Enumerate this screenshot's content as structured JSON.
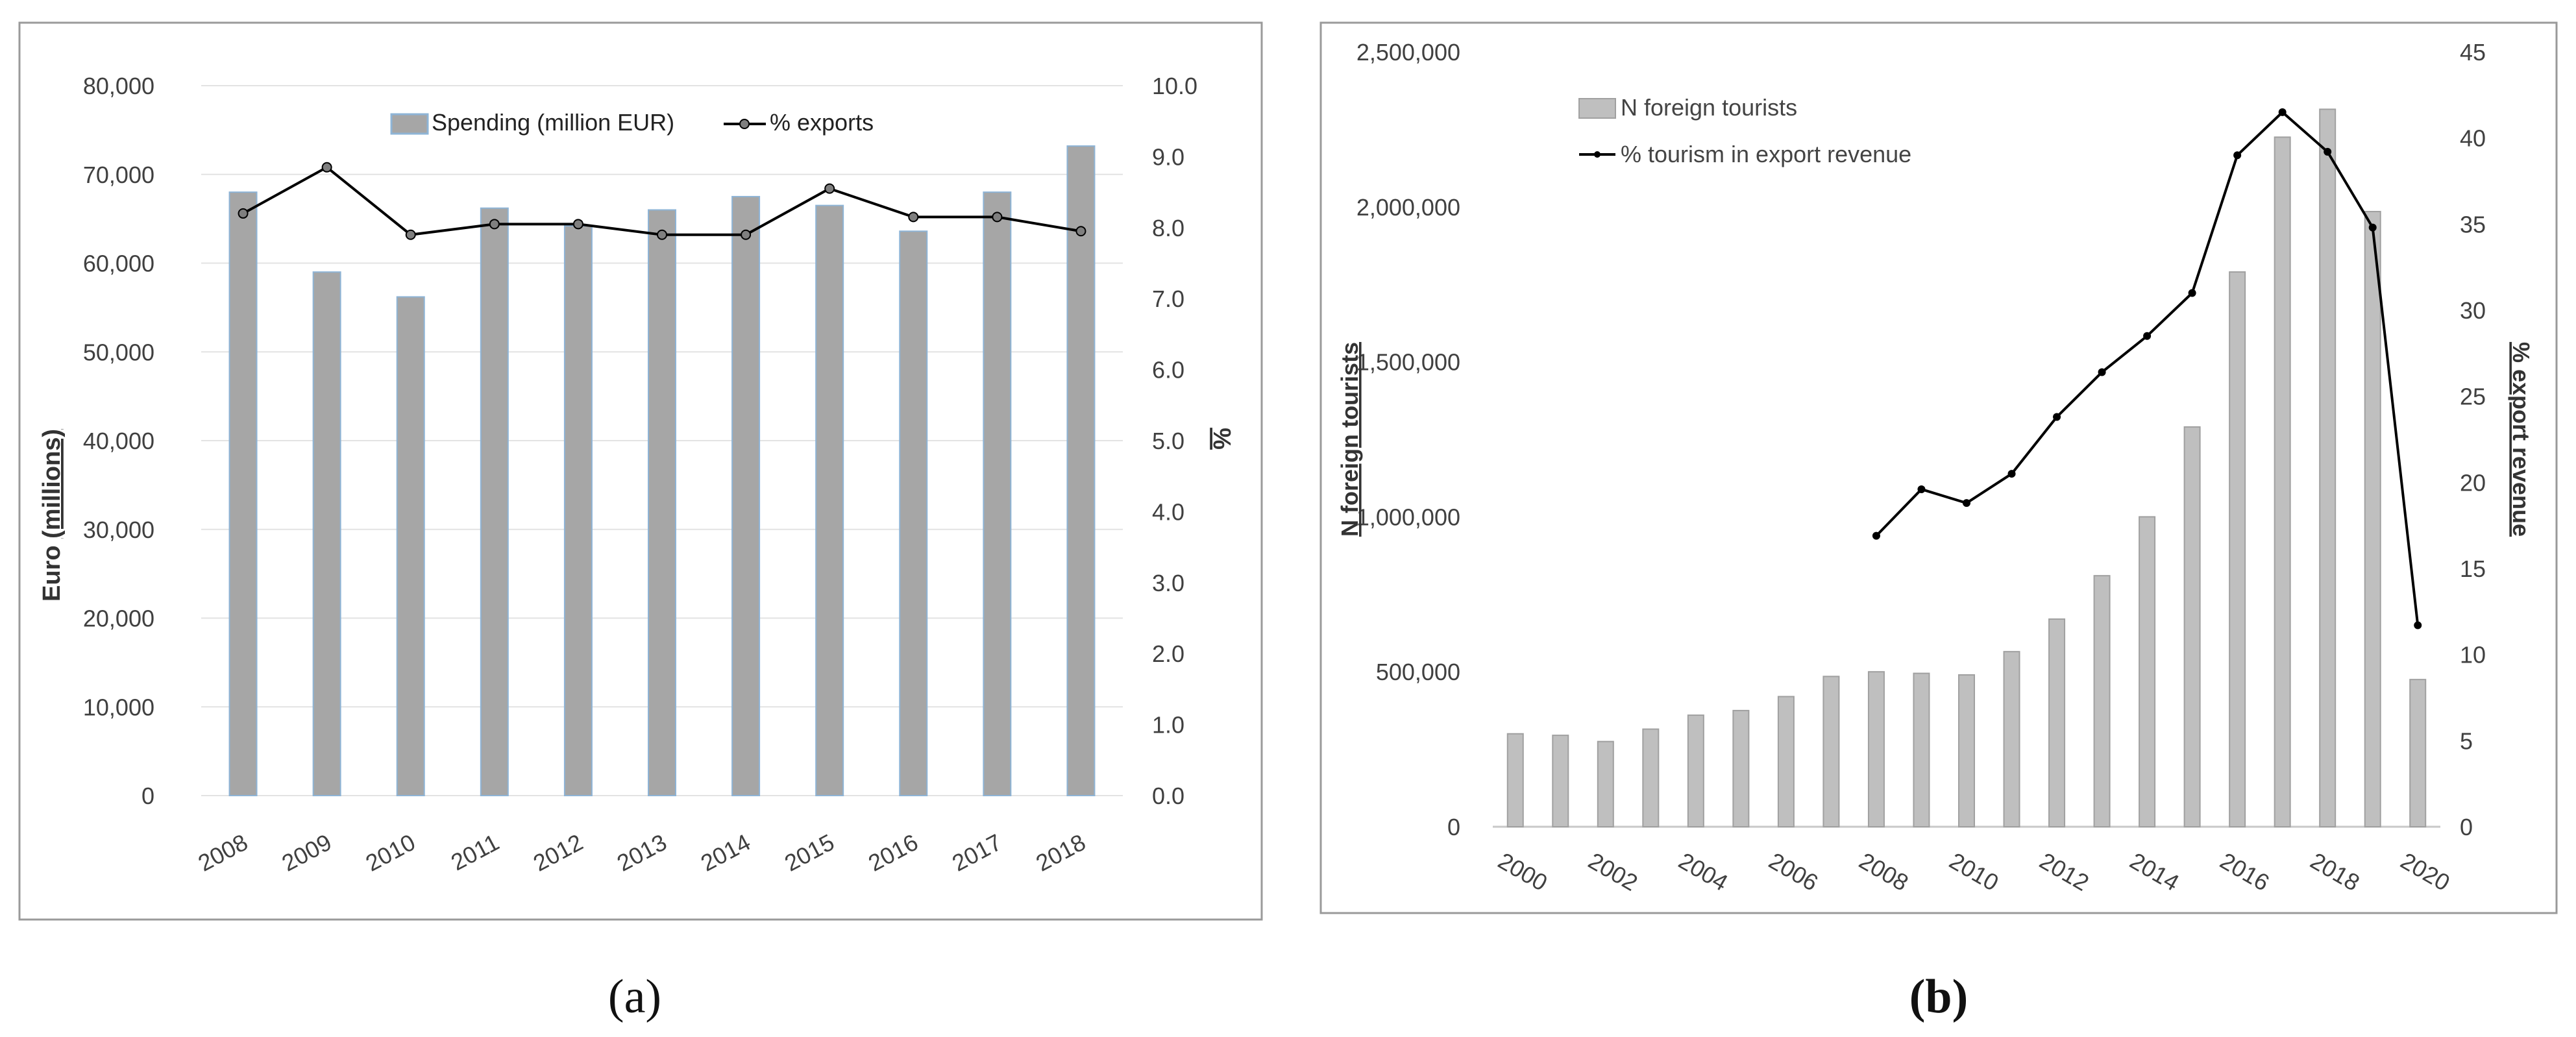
{
  "panels": [
    {
      "caption": "(a)",
      "chart_data": {
        "type": "bar",
        "categories": [
          "2008",
          "2009",
          "2010",
          "2011",
          "2012",
          "2013",
          "2014",
          "2015",
          "2016",
          "2017",
          "2018"
        ],
        "series": [
          {
            "name": "Spending (million EUR)",
            "type": "bar",
            "axis": "left",
            "color": "#a6a6a6",
            "edge": "#8eb4d6",
            "values": [
              68000,
              59000,
              56200,
              66200,
              64200,
              66000,
              67500,
              66500,
              63600,
              68000,
              73200
            ]
          },
          {
            "name": "% exports",
            "type": "line",
            "axis": "right",
            "color": "#000000",
            "values": [
              8.2,
              8.85,
              7.9,
              8.05,
              8.05,
              7.9,
              7.9,
              8.55,
              8.15,
              8.15,
              7.95
            ]
          }
        ],
        "yleft": {
          "label_parts": [
            "Euro ",
            "(millions)"
          ],
          "min": 0,
          "max": 80000,
          "step": 10000,
          "ticks": [
            "0",
            "10,000",
            "20,000",
            "30,000",
            "40,000",
            "50,000",
            "60,000",
            "70,000",
            "80,000"
          ]
        },
        "yright": {
          "label": "%",
          "min": 0,
          "max": 10,
          "step": 1,
          "ticks": [
            "0.0",
            "1.0",
            "2.0",
            "3.0",
            "4.0",
            "5.0",
            "6.0",
            "7.0",
            "8.0",
            "9.0",
            "10.0"
          ]
        },
        "grid": true,
        "legend": "top-center"
      }
    },
    {
      "caption": "(b)",
      "chart_data": {
        "type": "bar",
        "categories": [
          "2000",
          "2001",
          "2002",
          "2003",
          "2004",
          "2005",
          "2006",
          "2007",
          "2008",
          "2009",
          "2010",
          "2011",
          "2012",
          "2013",
          "2014",
          "2015",
          "2016",
          "2017",
          "2018",
          "2019",
          "2020"
        ],
        "xtick_labels": [
          "2000",
          "2002",
          "2004",
          "2006",
          "2008",
          "2010",
          "2012",
          "2014",
          "2016",
          "2018",
          "2020"
        ],
        "series": [
          {
            "name": "N foreign tourists",
            "type": "bar",
            "axis": "left",
            "color": "#bfbfbf",
            "edge": "#a0a0a0",
            "values": [
              300000,
              295000,
              275000,
              315000,
              360000,
              375000,
              420000,
              485000,
              500000,
              495000,
              490000,
              565000,
              670000,
              810000,
              1000000,
              1290000,
              1790000,
              2225000,
              2315000,
              1985000,
              475000
            ]
          },
          {
            "name": "% tourism in export revenue",
            "type": "line",
            "axis": "right",
            "color": "#000000",
            "values": [
              null,
              null,
              null,
              null,
              null,
              null,
              null,
              null,
              16.9,
              19.6,
              18.8,
              20.5,
              23.8,
              26.4,
              28.5,
              31.0,
              39.0,
              41.5,
              39.2,
              34.8,
              11.7
            ]
          }
        ],
        "yleft": {
          "label": "N foreign tourists",
          "min": 0,
          "max": 2500000,
          "step": 500000,
          "ticks": [
            "0",
            "500,000",
            "1,000,000",
            "1,500,000",
            "2,000,000",
            "2,500,000"
          ]
        },
        "yright": {
          "label": "% export revenue",
          "min": 0,
          "max": 45,
          "step": 5,
          "ticks": [
            "0",
            "5",
            "10",
            "15",
            "20",
            "25",
            "30",
            "35",
            "40",
            "45"
          ]
        },
        "grid": false,
        "legend": "top-left"
      }
    }
  ]
}
